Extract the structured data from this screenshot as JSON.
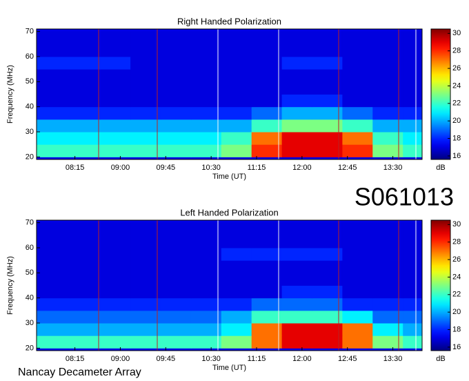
{
  "chart_data": [
    {
      "type": "heatmap",
      "title": "Right Handed Polarization",
      "x_label": "Time (UT)",
      "y_label": "Frequency (MHz)",
      "xlim": [
        457,
        839
      ],
      "xticks": [
        {
          "value": 495,
          "label": "08:15"
        },
        {
          "value": 540,
          "label": "09:00"
        },
        {
          "value": 585,
          "label": "09:45"
        },
        {
          "value": 630,
          "label": "10:30"
        },
        {
          "value": 675,
          "label": "11:15"
        },
        {
          "value": 720,
          "label": "12:00"
        },
        {
          "value": 765,
          "label": "12:45"
        },
        {
          "value": 810,
          "label": "13:30"
        }
      ],
      "ylim": [
        19,
        71
      ],
      "yticks": [
        20,
        30,
        40,
        50,
        60,
        70
      ],
      "xbins": [
        457,
        490,
        520,
        550,
        580,
        610,
        640,
        670,
        700,
        730,
        760,
        790,
        820,
        839
      ],
      "ybins": [
        20,
        25,
        30,
        35,
        40,
        45,
        50,
        55,
        60,
        65,
        70
      ],
      "z": [
        [
          22,
          22,
          22,
          22,
          22,
          22,
          23,
          28,
          29,
          29,
          28,
          23,
          22
        ],
        [
          21,
          21,
          21,
          21,
          21,
          21,
          22,
          27,
          29,
          29,
          27,
          22,
          21
        ],
        [
          20,
          20,
          20,
          20,
          20,
          20,
          20,
          22,
          23,
          23,
          22,
          20,
          20
        ],
        [
          18,
          18,
          18,
          18,
          18,
          18,
          18,
          19,
          20,
          20,
          19,
          18,
          18
        ],
        [
          17,
          17,
          17,
          17,
          17,
          17,
          17,
          17,
          18,
          18,
          17,
          17,
          17
        ],
        [
          17,
          17,
          17,
          17,
          17,
          17,
          17,
          17,
          17,
          17,
          17,
          17,
          17
        ],
        [
          17,
          17,
          17,
          17,
          17,
          17,
          17,
          17,
          17,
          17,
          17,
          17,
          17
        ],
        [
          18,
          18,
          18,
          17,
          17,
          17,
          17,
          17,
          18,
          18,
          17,
          17,
          17
        ],
        [
          17,
          17,
          17,
          17,
          17,
          17,
          17,
          17,
          17,
          17,
          17,
          17,
          17
        ],
        [
          17,
          17,
          17,
          17,
          17,
          17,
          17,
          17,
          17,
          17,
          17,
          17,
          17
        ]
      ],
      "zlim": [
        15.6,
        30.5
      ],
      "zticks": [
        16,
        18,
        20,
        22,
        24,
        26,
        28,
        30
      ],
      "z_label": "dB",
      "colormap": "jet"
    },
    {
      "type": "heatmap",
      "title": "Left Handed Polarization",
      "x_label": "Time (UT)",
      "y_label": "Frequency (MHz)",
      "xlim": [
        457,
        839
      ],
      "xticks": [
        {
          "value": 495,
          "label": "08:15"
        },
        {
          "value": 540,
          "label": "09:00"
        },
        {
          "value": 585,
          "label": "09:45"
        },
        {
          "value": 630,
          "label": "10:30"
        },
        {
          "value": 675,
          "label": "11:15"
        },
        {
          "value": 720,
          "label": "12:00"
        },
        {
          "value": 765,
          "label": "12:45"
        },
        {
          "value": 810,
          "label": "13:30"
        }
      ],
      "ylim": [
        19,
        71
      ],
      "yticks": [
        20,
        30,
        40,
        50,
        60,
        70
      ],
      "xbins": [
        457,
        490,
        520,
        550,
        580,
        610,
        640,
        670,
        700,
        730,
        760,
        790,
        820,
        839
      ],
      "ybins": [
        20,
        25,
        30,
        35,
        40,
        45,
        50,
        55,
        60,
        65,
        70
      ],
      "z": [
        [
          22,
          22,
          22,
          22,
          22,
          22,
          23,
          27,
          29,
          29,
          27,
          23,
          22
        ],
        [
          20,
          20,
          20,
          20,
          20,
          20,
          21,
          27,
          29,
          29,
          27,
          21,
          20
        ],
        [
          19,
          19,
          19,
          19,
          19,
          19,
          20,
          22,
          22,
          22,
          21,
          19,
          19
        ],
        [
          18,
          18,
          18,
          18,
          18,
          18,
          18,
          19,
          19,
          19,
          18,
          18,
          18
        ],
        [
          17,
          17,
          17,
          17,
          17,
          17,
          17,
          17,
          18,
          18,
          17,
          17,
          17
        ],
        [
          17,
          17,
          17,
          17,
          17,
          17,
          17,
          17,
          17,
          17,
          17,
          17,
          17
        ],
        [
          17,
          17,
          17,
          17,
          17,
          17,
          17,
          17,
          17,
          17,
          17,
          17,
          17
        ],
        [
          17,
          17,
          17,
          17,
          17,
          17,
          18,
          18,
          18,
          18,
          17,
          17,
          17
        ],
        [
          17,
          17,
          17,
          17,
          17,
          17,
          17,
          17,
          17,
          17,
          17,
          17,
          17
        ],
        [
          17,
          17,
          17,
          17,
          17,
          17,
          17,
          17,
          17,
          17,
          17,
          17,
          17
        ]
      ],
      "zlim": [
        15.6,
        30.5
      ],
      "zticks": [
        16,
        18,
        20,
        22,
        24,
        26,
        28,
        30
      ],
      "z_label": "dB",
      "colormap": "jet"
    }
  ],
  "label": "S061013",
  "footer": "Nancay Decameter Array"
}
